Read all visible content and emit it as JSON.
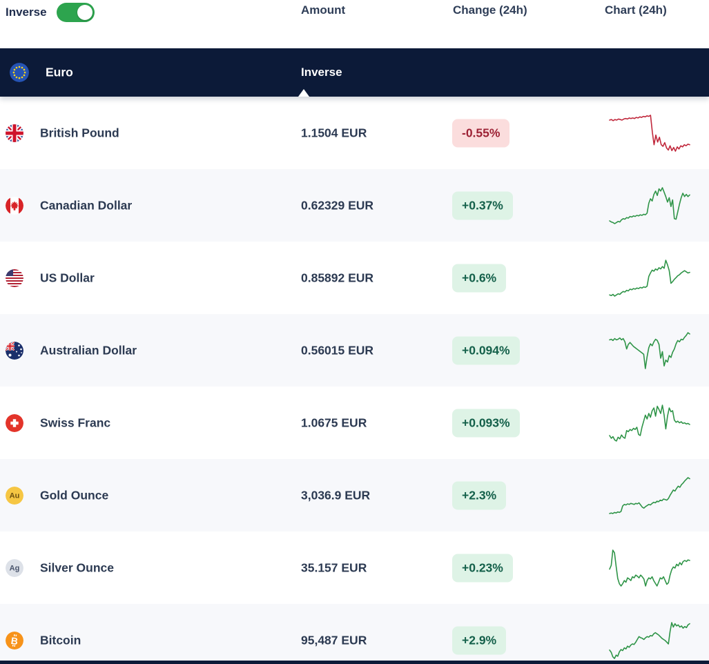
{
  "header": {
    "inverse_label": "Inverse",
    "inverse_on": true,
    "columns": [
      "Amount",
      "Change (24h)",
      "Chart (24h)"
    ]
  },
  "group": {
    "name": "Euro",
    "mode": "Inverse",
    "icon": "eu-flag"
  },
  "colors": {
    "toggle_on": "#2da44e",
    "group_header_bg": "#0c1a38",
    "badge_positive_bg": "#def3e6",
    "badge_positive_text": "#14604a",
    "badge_negative_bg": "#fbdddd",
    "badge_negative_text": "#9d2235",
    "spark_up": "#2e9447",
    "spark_down": "#c0273b"
  },
  "rows": [
    {
      "name": "British Pound",
      "icon": "uk-flag",
      "amount": "1.1504 EUR",
      "change": "-0.55%",
      "chart": {
        "type": "line",
        "color": "#c0273b",
        "points": [
          74,
          75,
          73,
          75,
          74,
          76,
          75,
          74,
          76,
          77,
          76,
          78,
          77,
          78,
          77,
          79,
          78,
          80,
          79,
          81,
          80,
          82,
          81,
          83,
          52,
          28,
          46,
          33,
          42,
          28,
          25,
          32,
          22,
          18,
          26,
          17,
          23,
          16,
          24,
          20,
          26,
          24,
          28,
          26,
          29,
          28
        ]
      }
    },
    {
      "name": "Canadian Dollar",
      "icon": "canada-flag",
      "amount": "0.62329 EUR",
      "change": "+0.37%",
      "chart": {
        "type": "line",
        "color": "#2e9447",
        "points": [
          30,
          28,
          27,
          25,
          27,
          29,
          28,
          32,
          34,
          33,
          36,
          35,
          38,
          37,
          39,
          38,
          40,
          39,
          41,
          40,
          42,
          41,
          44,
          62,
          70,
          66,
          78,
          84,
          76,
          88,
          84,
          90,
          82,
          74,
          64,
          72,
          56,
          68,
          34,
          33,
          46,
          60,
          72,
          80,
          74,
          78,
          74,
          77
        ]
      }
    },
    {
      "name": "US Dollar",
      "icon": "us-flag",
      "amount": "0.85892 EUR",
      "change": "+0.6%",
      "chart": {
        "type": "line",
        "color": "#2e9447",
        "points": [
          26,
          25,
          27,
          24,
          26,
          28,
          27,
          30,
          32,
          31,
          34,
          33,
          36,
          35,
          37,
          36,
          38,
          37,
          39,
          38,
          40,
          39,
          41,
          58,
          64,
          69,
          67,
          71,
          69,
          73,
          71,
          75,
          72,
          86,
          78,
          68,
          46,
          49,
          53,
          56,
          59,
          61,
          64,
          66,
          68,
          66,
          64,
          65
        ]
      }
    },
    {
      "name": "Australian Dollar",
      "icon": "australia-flag",
      "amount": "0.56015 EUR",
      "change": "+0.094%",
      "chart": {
        "type": "line",
        "color": "#2e9447",
        "points": [
          70,
          71,
          69,
          72,
          70,
          71,
          73,
          70,
          72,
          67,
          56,
          63,
          66,
          63,
          60,
          58,
          56,
          54,
          52,
          50,
          48,
          26,
          44,
          58,
          64,
          61,
          67,
          71,
          69,
          63,
          42,
          52,
          30,
          39,
          36,
          46,
          43,
          51,
          56,
          64,
          69,
          67,
          71,
          70,
          74,
          77,
          81,
          79
        ]
      }
    },
    {
      "name": "Swiss Franc",
      "icon": "switzerland-flag",
      "amount": "1.0675 EUR",
      "change": "+0.093%",
      "chart": {
        "type": "line",
        "color": "#2e9447",
        "points": [
          34,
          29,
          32,
          26,
          24,
          31,
          28,
          35,
          31,
          29,
          43,
          41,
          45,
          43,
          47,
          45,
          49,
          36,
          34,
          49,
          60,
          71,
          64,
          74,
          67,
          79,
          84,
          69,
          87,
          81,
          74,
          89,
          71,
          46,
          69,
          84,
          77,
          79,
          62,
          58,
          60,
          57,
          59,
          56,
          57,
          55,
          56,
          54
        ]
      }
    },
    {
      "name": "Gold Ounce",
      "icon": "gold-au",
      "amount": "3,036.9 EUR",
      "change": "+2.3%",
      "chart": {
        "type": "line",
        "color": "#2e9447",
        "points": [
          20,
          21,
          20,
          22,
          21,
          23,
          22,
          24,
          34,
          37,
          36,
          38,
          37,
          39,
          38,
          37,
          39,
          38,
          40,
          36,
          32,
          30,
          33,
          35,
          37,
          36,
          39,
          41,
          40,
          43,
          42,
          45,
          44,
          47,
          46,
          45,
          48,
          54,
          59,
          64,
          62,
          67,
          71,
          69,
          74,
          77,
          81,
          84,
          87,
          85
        ]
      }
    },
    {
      "name": "Silver Ounce",
      "icon": "silver-ag",
      "amount": "35.157 EUR",
      "change": "+0.23%",
      "chart": {
        "type": "line",
        "color": "#2e9447",
        "points": [
          55,
          62,
          90,
          85,
          60,
          38,
          28,
          24,
          28,
          34,
          31,
          39,
          37,
          34,
          41,
          39,
          44,
          42,
          39,
          44,
          41,
          37,
          24,
          34,
          39,
          37,
          41,
          34,
          29,
          24,
          31,
          39,
          37,
          41,
          34,
          27,
          30,
          44,
          54,
          59,
          57,
          64,
          61,
          67,
          63,
          69,
          71,
          69,
          72,
          71
        ]
      }
    },
    {
      "name": "Bitcoin",
      "icon": "bitcoin",
      "amount": "95,487 EUR",
      "change": "+2.9%",
      "chart": {
        "type": "line",
        "color": "#2e9447",
        "points": [
          30,
          26,
          18,
          15,
          21,
          19,
          27,
          31,
          29,
          34,
          32,
          37,
          35,
          39,
          41,
          40,
          44,
          49,
          54,
          52,
          51,
          49,
          52,
          54,
          53,
          56,
          55,
          59,
          61,
          59,
          57,
          54,
          51,
          49,
          47,
          44,
          41,
          63,
          79,
          71,
          77,
          73,
          75,
          71,
          73,
          69,
          72,
          70,
          75,
          77
        ]
      }
    }
  ]
}
